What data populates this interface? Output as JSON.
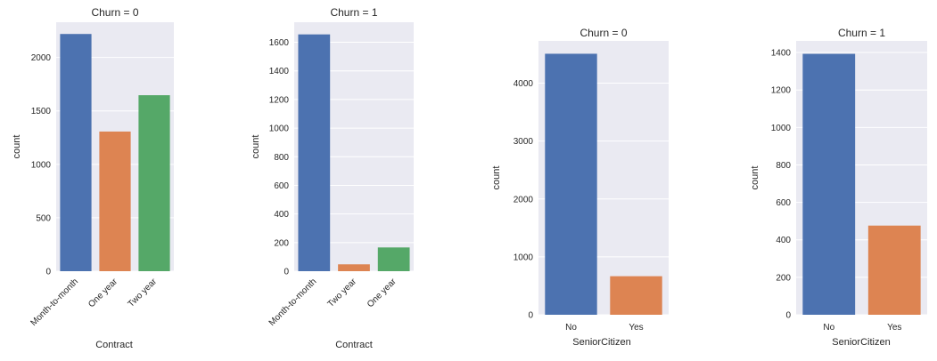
{
  "chart_data": [
    {
      "type": "bar",
      "title": "Churn = 0",
      "xlabel": "Contract",
      "ylabel": "count",
      "categories": [
        "Month-to-month",
        "One year",
        "Two year"
      ],
      "values": [
        2220,
        1307,
        1647
      ],
      "colors": [
        "#4c72b0",
        "#dd8452",
        "#55a868"
      ],
      "ylim": [
        0,
        2330
      ],
      "yticks": [
        0,
        500,
        1000,
        1500,
        2000
      ],
      "rotate_xticks": true
    },
    {
      "type": "bar",
      "title": "Churn = 1",
      "xlabel": "Contract",
      "ylabel": "count",
      "categories": [
        "Month-to-month",
        "Two year",
        "One year"
      ],
      "values": [
        1655,
        48,
        166
      ],
      "colors": [
        "#4c72b0",
        "#dd8452",
        "#55a868"
      ],
      "ylim": [
        0,
        1740
      ],
      "yticks": [
        0,
        200,
        400,
        600,
        800,
        1000,
        1200,
        1400,
        1600
      ],
      "rotate_xticks": true
    },
    {
      "type": "bar",
      "title": "Churn = 0",
      "xlabel": "SeniorCitizen",
      "ylabel": "count",
      "categories": [
        "No",
        "Yes"
      ],
      "values": [
        4508,
        666
      ],
      "colors": [
        "#4c72b0",
        "#dd8452"
      ],
      "ylim": [
        0,
        4730
      ],
      "yticks": [
        0,
        1000,
        2000,
        3000,
        4000
      ],
      "rotate_xticks": false
    },
    {
      "type": "bar",
      "title": "Churn = 1",
      "xlabel": "SeniorCitizen",
      "ylabel": "count",
      "categories": [
        "No",
        "Yes"
      ],
      "values": [
        1393,
        476
      ],
      "colors": [
        "#4c72b0",
        "#dd8452"
      ],
      "ylim": [
        0,
        1462
      ],
      "yticks": [
        0,
        200,
        400,
        600,
        800,
        1000,
        1200,
        1400
      ],
      "rotate_xticks": false
    }
  ]
}
